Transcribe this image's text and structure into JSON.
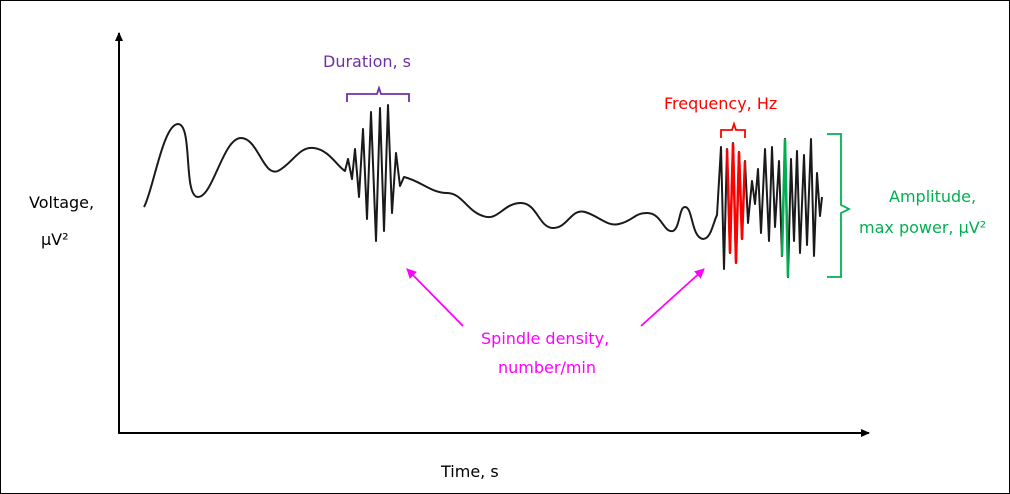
{
  "axes": {
    "y_label_line1": "Voltage,",
    "y_label_line2": "µV²",
    "x_label": "Time, s"
  },
  "annotations": {
    "duration": "Duration, s",
    "frequency": "Frequency, Hz",
    "amplitude_line1": "Amplitude,",
    "amplitude_line2": "max power, µV²",
    "density_line1": "Spindle density,",
    "density_line2": "number/min"
  },
  "colors": {
    "duration": "#7030a0",
    "frequency": "#ff0000",
    "amplitude": "#00b050",
    "density": "#ff00ff",
    "signal": "#1a1a1a"
  }
}
